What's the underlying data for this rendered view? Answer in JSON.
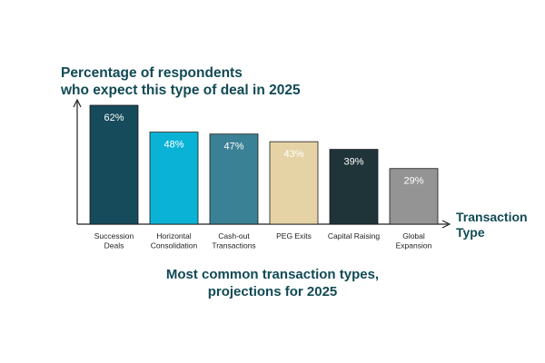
{
  "chart_data": {
    "type": "bar",
    "title": "Percentage of respondents who expect this type of deal in 2025",
    "title_lines": [
      "Percentage of respondents",
      "who expect this type of deal in 2025"
    ],
    "xlabel": "Transaction Type",
    "xlabel_lines": [
      "Transaction",
      "Type"
    ],
    "caption_lines": [
      "Most common transaction types,",
      "projections for 2025"
    ],
    "categories": [
      [
        "Succession",
        "Deals"
      ],
      [
        "Horizontal",
        "Consolidation"
      ],
      [
        "Cash-out",
        "Transactions"
      ],
      [
        "PEG Exits"
      ],
      [
        "Capital Raising"
      ],
      [
        "Global",
        "Expansion"
      ]
    ],
    "values": [
      62,
      48,
      47,
      43,
      39,
      29
    ],
    "value_labels": [
      "62%",
      "48%",
      "47%",
      "43%",
      "39%",
      "29%"
    ],
    "bar_colors": [
      "#154b5b",
      "#0ab3d6",
      "#3b8196",
      "#e5d3a6",
      "#1f3438",
      "#949494"
    ],
    "label_colors": [
      "#ffffff",
      "#ffffff",
      "#ffffff",
      "#ffffff",
      "#ffffff",
      "#ffffff"
    ],
    "ylim": [
      0,
      62
    ],
    "grid": false,
    "legend": "none"
  }
}
